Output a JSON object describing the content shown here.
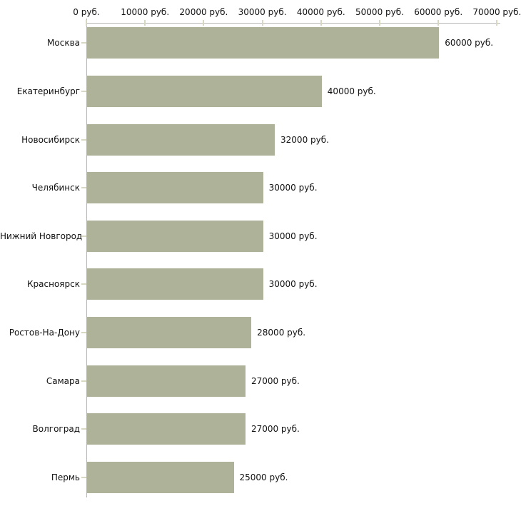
{
  "chart_data": {
    "type": "bar",
    "orientation": "horizontal",
    "title": "",
    "categories": [
      "Москва",
      "Екатеринбург",
      "Новосибирск",
      "Челябинск",
      "Нижний Новгород",
      "Красноярск",
      "Ростов-На-Дону",
      "Самара",
      "Волгоград",
      "Пермь"
    ],
    "values": [
      60000,
      40000,
      32000,
      30000,
      30000,
      30000,
      28000,
      27000,
      27000,
      25000
    ],
    "value_labels": [
      "60000 руб.",
      "40000 руб.",
      "32000 руб.",
      "30000 руб.",
      "30000 руб.",
      "30000 руб.",
      "28000 руб.",
      "27000 руб.",
      "27000 руб.",
      "25000 руб."
    ],
    "unit": "руб.",
    "x_axis": {
      "position": "top",
      "min": 0,
      "max": 70000,
      "ticks": [
        0,
        10000,
        20000,
        30000,
        40000,
        50000,
        60000,
        70000
      ],
      "tick_labels": [
        "0 руб.",
        "10000 руб.",
        "20000 руб.",
        "30000 руб.",
        "40000 руб.",
        "50000 руб.",
        "60000 руб.",
        "70000 руб."
      ]
    },
    "grid": false,
    "legend": null,
    "colors": {
      "bar": "#aeb299",
      "axis_line": "#b6b6b6",
      "tick_mark": "#d8d7c3",
      "text": "#111111",
      "background": "#ffffff"
    }
  }
}
